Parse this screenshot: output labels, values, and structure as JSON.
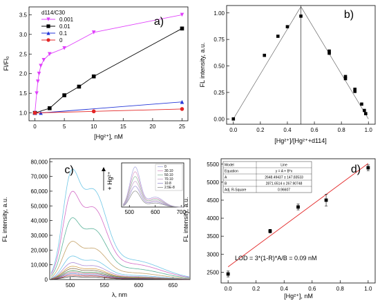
{
  "chart_data": [
    {
      "panel_label": "a)",
      "type": "line",
      "xlabel": "[Hg²⁺], nM",
      "ylabel": "Fl/Fl₀",
      "xlim": [
        -1,
        26
      ],
      "ylim": [
        0.8,
        3.7
      ],
      "xticks": [
        "0",
        "5",
        "10",
        "15",
        "20",
        "25"
      ],
      "yticks": [
        "1.0",
        "1.5",
        "2.0",
        "2.5",
        "3.0",
        "3.5"
      ],
      "legend_title": "d114/C30",
      "legend_position": "top-left",
      "series": [
        {
          "name": "0.001",
          "color": "#e040fb",
          "marker": "triangle-down",
          "x": [
            0,
            0.3,
            0.5,
            0.7,
            1,
            1.5,
            2.5,
            5,
            10,
            25
          ],
          "y": [
            1.0,
            1.5,
            1.8,
            2.0,
            2.2,
            2.35,
            2.5,
            2.65,
            3.05,
            3.5
          ]
        },
        {
          "name": "0.01",
          "color": "#000000",
          "marker": "square",
          "x": [
            0,
            2.5,
            5,
            7.5,
            10,
            25
          ],
          "y": [
            1.0,
            1.12,
            1.45,
            1.67,
            1.93,
            3.15
          ]
        },
        {
          "name": "0.1",
          "color": "#2436d8",
          "marker": "triangle-up",
          "x": [
            0,
            1,
            25
          ],
          "y": [
            1.0,
            1.0,
            1.28
          ]
        },
        {
          "name": "0",
          "color": "#e32626",
          "marker": "circle",
          "x": [
            0,
            10,
            25
          ],
          "y": [
            1.0,
            1.04,
            1.1
          ]
        }
      ]
    },
    {
      "panel_label": "b)",
      "type": "scatter",
      "xlabel": "[Hg²⁺]/[Hg²⁺+d114]",
      "ylabel": "FL intensity, a.u.",
      "xlim": [
        -0.05,
        1.05
      ],
      "ylim": [
        -0.05,
        1.07
      ],
      "xticks": [
        "0.0",
        "0.2",
        "0.4",
        "0.6",
        "0.8",
        "1.0"
      ],
      "yticks": [
        "0.00",
        "0.25",
        "0.50",
        "0.75",
        "1.00"
      ],
      "points": {
        "x": [
          0.0,
          0.23,
          0.33,
          0.4,
          0.5,
          0.71,
          0.71,
          0.83,
          0.83,
          0.9,
          0.9,
          0.95,
          0.97,
          0.98
        ],
        "y": [
          0.0,
          0.6,
          0.78,
          0.87,
          0.97,
          0.62,
          0.64,
          0.4,
          0.38,
          0.28,
          0.26,
          0.14,
          0.08,
          0.05
        ]
      },
      "fit_lines": [
        {
          "x": [
            0.0,
            0.5
          ],
          "y": [
            0.0,
            1.06
          ]
        },
        {
          "x": [
            0.5,
            1.0
          ],
          "y": [
            1.06,
            0.0
          ]
        }
      ],
      "vertical_line_x": 0.5
    },
    {
      "panel_label": "c)",
      "type": "line",
      "xlabel": "λ, nm",
      "ylabel": "FL intensity, a.u.",
      "xlim": [
        470,
        675
      ],
      "ylim": [
        0,
        82000
      ],
      "xticks": [
        "500",
        "550",
        "600",
        "650"
      ],
      "yticks": [
        "0",
        "10,000",
        "20,000",
        "30,000",
        "40,000",
        "50,000",
        "60,000",
        "70,000",
        "80,000"
      ],
      "arrow_label": "+ Hg²⁺",
      "spectrum_shape": {
        "peak1_nm": 500,
        "peak2_nm": 533
      },
      "series": [
        {
          "color": "#6ec6e6",
          "peak": 75000
        },
        {
          "color": "#d36bc6",
          "peak": 60000
        },
        {
          "color": "#5ab39a",
          "peak": 42000
        },
        {
          "color": "#c5a36a",
          "peak": 26000
        },
        {
          "color": "#6ec6e6",
          "peak": 16000
        },
        {
          "color": "#a98ad6",
          "peak": 11500
        },
        {
          "color": "#d3a04a",
          "peak": 9000
        },
        {
          "color": "#7f6a4a",
          "peak": 7500
        },
        {
          "color": "#4a9a5a",
          "peak": 6000
        },
        {
          "color": "#b66a8a",
          "peak": 5000
        },
        {
          "color": "#5a70c6",
          "peak": 4000
        },
        {
          "color": "#c63a3a",
          "peak": 3000
        },
        {
          "color": "#333333",
          "peak": 2000
        }
      ],
      "inset": {
        "xticks": [
          "500",
          "600",
          "700"
        ],
        "xlim": [
          470,
          710
        ],
        "legend": [
          "0",
          "30.10",
          "50.10",
          "70.10",
          "10.8",
          "2.5E-8"
        ],
        "series": [
          {
            "color": "#a9a9e0",
            "peak": 1.0
          },
          {
            "color": "#d998c6",
            "peak": 0.88
          },
          {
            "color": "#8fb9a0",
            "peak": 0.76
          },
          {
            "color": "#c7a2c8",
            "peak": 0.64
          },
          {
            "color": "#9a8ed0",
            "peak": 0.52
          },
          {
            "color": "#8a8a8a",
            "peak": 0.4
          }
        ]
      }
    },
    {
      "panel_label": "d)",
      "type": "scatter",
      "xlabel": "[Hg²⁺], nM",
      "ylabel": "FL intensity, a.u.",
      "xlim": [
        -0.05,
        1.05
      ],
      "ylim": [
        2200,
        5650
      ],
      "xticks": [
        "0.0",
        "0.2",
        "0.4",
        "0.6",
        "0.8",
        "1.0"
      ],
      "yticks": [
        "2500",
        "3000",
        "3500",
        "4000",
        "4500",
        "5000",
        "5500"
      ],
      "points": {
        "x": [
          0.0,
          0.3,
          0.5,
          0.7,
          1.0
        ],
        "y": [
          2450,
          3640,
          4310,
          4500,
          5400
        ],
        "err": [
          80,
          50,
          80,
          160,
          80
        ]
      },
      "fit": {
        "color": "#e32626",
        "A": 2648.49437,
        "B": 2871.6514,
        "x": [
          0.0,
          1.0
        ]
      },
      "annotation": "LOD = 3*(1-R)*A/B = 0.09 nM",
      "fit_table": [
        [
          "Model",
          "Line"
        ],
        [
          "Equation",
          "y = A + B*x"
        ],
        [
          "A",
          "2648.49437 ± 147.83533"
        ],
        [
          "B",
          "2871.6514 ± 267.90748"
        ],
        [
          "Adj. R-Square",
          "0.96607"
        ]
      ]
    }
  ]
}
